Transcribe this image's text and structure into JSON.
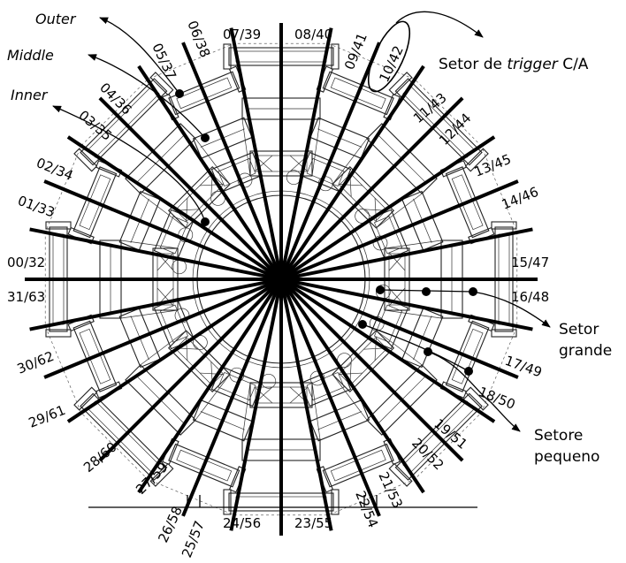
{
  "sector_labels": {
    "s00_32": "00/32",
    "s01_33": "01/33",
    "s02_34": "02/34",
    "s03_35": "03/35",
    "s04_36": "04/36",
    "s05_37": "05/37",
    "s06_38": "06/38",
    "s07_39": "07/39",
    "s08_40": "08/40",
    "s09_41": "09/41",
    "s10_42": "10/42",
    "s11_43": "11/43",
    "s12_44": "12/44",
    "s13_45": "13/45",
    "s14_46": "14/46",
    "s15_47": "15/47",
    "s16_48": "16/48",
    "s17_49": "17/49",
    "s18_50": "18/50",
    "s19_51": "19/51",
    "s20_52": "20/52",
    "s21_53": "21/53",
    "s22_54": "22/54",
    "s23_55": "23/55",
    "s24_56": "24/56",
    "s25_57": "25/57",
    "s26_58": "26/58",
    "s27_59": "27/59",
    "s28_60": "28/60",
    "s29_61": "29/61",
    "s30_62": "30/62",
    "s31_63": "31/63"
  },
  "annotations": {
    "outer": "Outer",
    "middle": "Middle",
    "inner": "Inner",
    "trigger_prefix": "Setor de ",
    "trigger_italic": "trigger",
    "trigger_suffix": " C/A",
    "large_line1": "Setor",
    "large_line2": "grande",
    "small_line1": "Setore",
    "small_line2": "pequeno"
  },
  "colors": {
    "ink": "#000000",
    "mechanics": "#222222",
    "background": "#ffffff"
  }
}
